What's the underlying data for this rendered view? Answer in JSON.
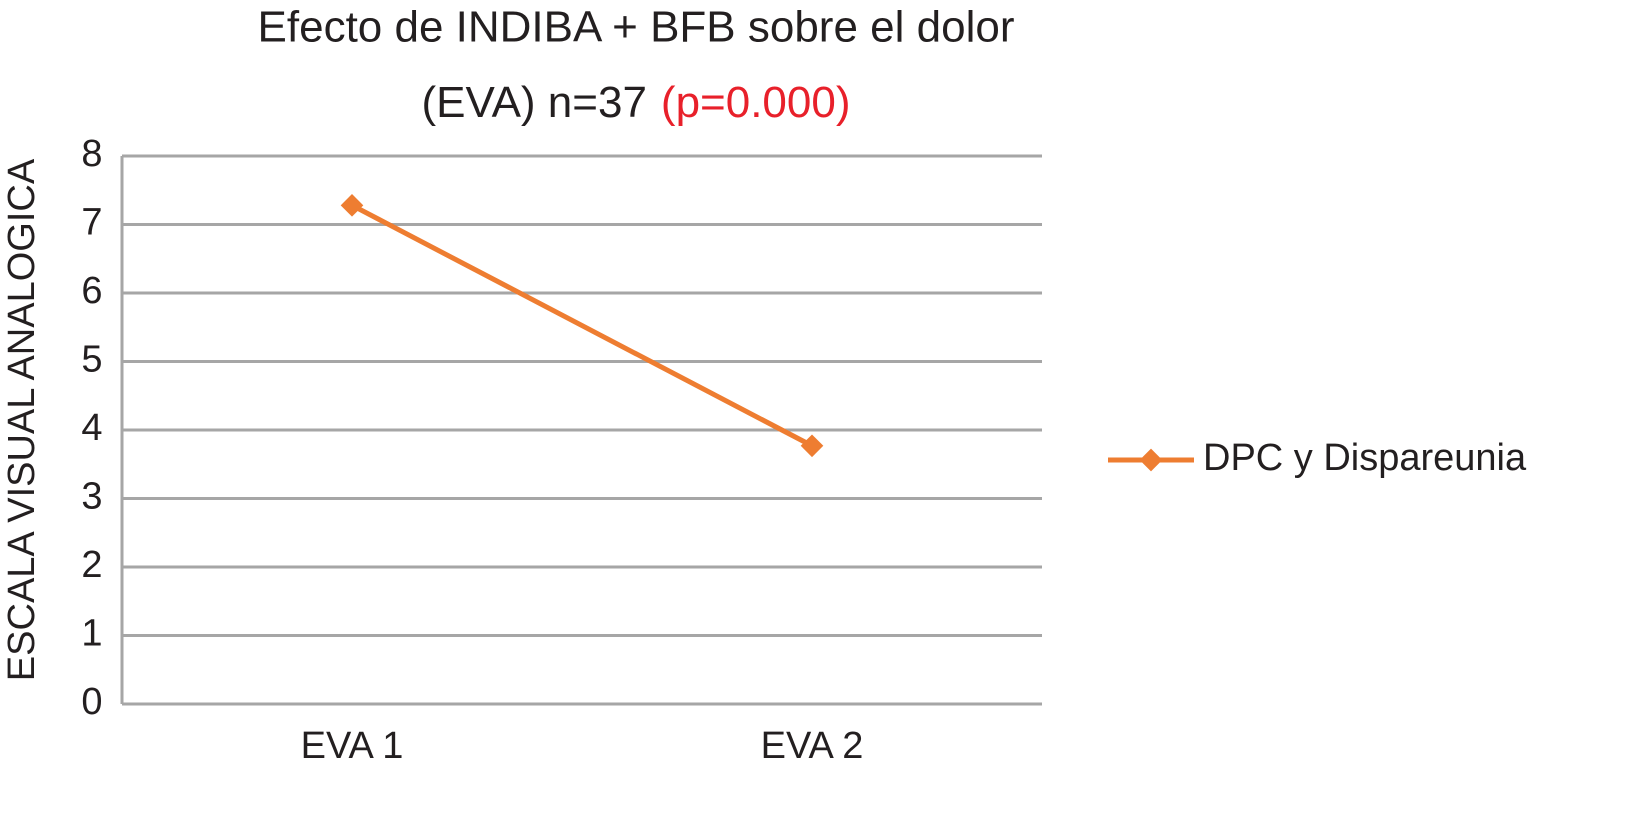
{
  "chart_data": {
    "type": "line",
    "title": "Efecto de INDIBA + BFB  sobre  el dolor",
    "subtitle": "(EVA) n=37",
    "annotation": "(p=0.000)",
    "annotation_color": "#e8202a",
    "y_label": "ESCALA VISUAL ANALOGICA",
    "categories": [
      "EVA 1",
      "EVA 2"
    ],
    "series": [
      {
        "name": "DPC y Dispareunia",
        "color": "#ee7d31",
        "values": [
          7.28,
          3.77
        ]
      }
    ],
    "ylim": [
      0,
      8
    ],
    "yticks": [
      0,
      1,
      2,
      3,
      4,
      5,
      6,
      7,
      8
    ],
    "grid": true,
    "legend": "right"
  }
}
